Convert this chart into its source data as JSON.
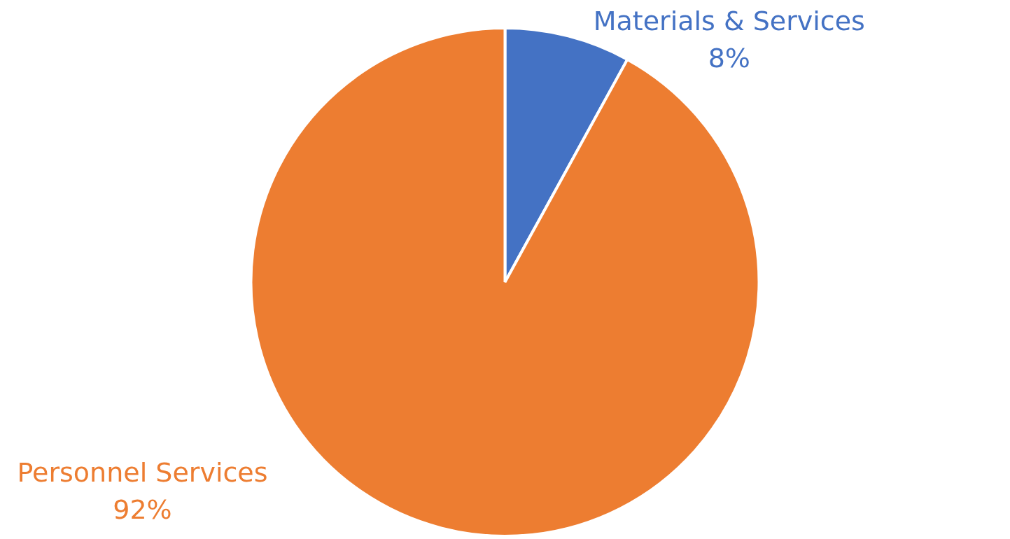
{
  "chart_data": {
    "type": "pie",
    "categories": [
      "Materials & Services",
      "Personnel Services"
    ],
    "values": [
      8,
      92
    ],
    "colors": [
      "#4472c4",
      "#ed7d31"
    ],
    "value_labels": [
      "8%",
      "92%"
    ],
    "legend": false
  }
}
